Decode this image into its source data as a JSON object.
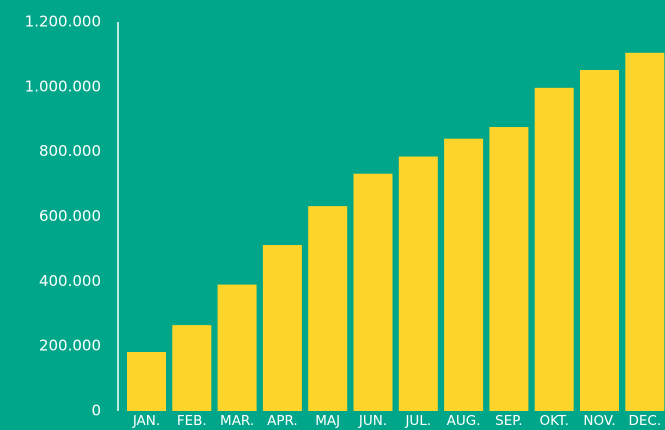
{
  "colors": {
    "background": "#00a68a",
    "bar": "#fdd42a",
    "axis": "#ffffff",
    "text": "#ffffff"
  },
  "chart_data": {
    "type": "bar",
    "title": "",
    "xlabel": "",
    "ylabel": "",
    "grid": false,
    "legend": "none",
    "categories": [
      "JAN.",
      "FEB.",
      "MAR.",
      "APR.",
      "MAJ",
      "JUN.",
      "JUL.",
      "AUG.",
      "SEP.",
      "OKT.",
      "NOV.",
      "DEC."
    ],
    "values": [
      182000,
      265000,
      390000,
      512000,
      632000,
      732000,
      785000,
      840000,
      876000,
      997000,
      1052000,
      1105000
    ],
    "ylim": [
      0,
      1200000
    ],
    "yticks": [
      0,
      200000,
      400000,
      600000,
      800000,
      1000000,
      1200000
    ],
    "ytick_labels": [
      "0",
      "200.000",
      "400.000",
      "600.000",
      "800.000",
      "1.000.000",
      "1.200.000"
    ]
  }
}
